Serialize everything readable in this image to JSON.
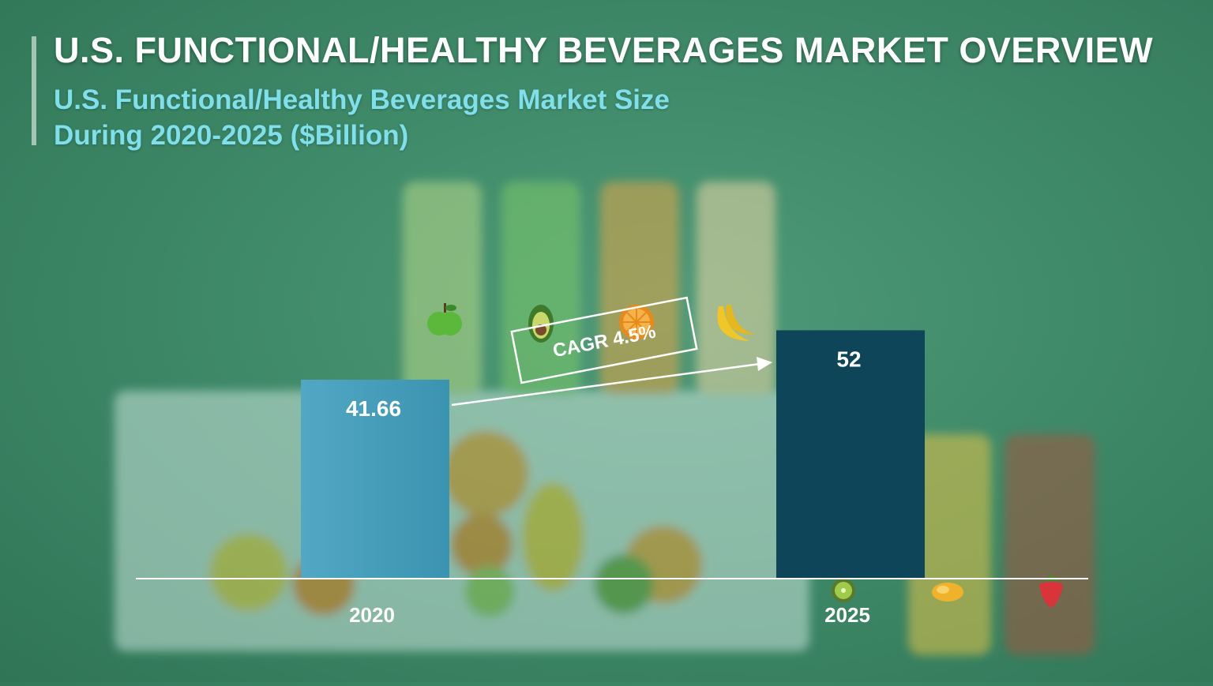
{
  "header": {
    "title": "U.S. FUNCTIONAL/HEALTHY BEVERAGES MARKET OVERVIEW",
    "subtitle_line1": "U.S. Functional/Healthy Beverages Market Size",
    "subtitle_line2": "During 2020-2025 ($Billion)"
  },
  "colors": {
    "background": "#3f8a69",
    "title": "#ffffff",
    "subtitle": "#7fe0ec",
    "bar_2020": "#3a93b0",
    "bar_2025": "#0f4558"
  },
  "annotation": {
    "cagr_label": "CAGR 4.5%"
  },
  "decor_icons": [
    "apple-icon",
    "avocado-icon",
    "orange-icon",
    "banana-icon",
    "kiwi-icon",
    "mango-icon",
    "strawberry-icon"
  ],
  "chart_data": {
    "type": "bar",
    "title": "U.S. Functional/Healthy Beverages Market Size During 2020-2025 ($Billion)",
    "categories": [
      "2020",
      "2025"
    ],
    "values": [
      41.66,
      52
    ],
    "value_labels": [
      "41.66",
      "52"
    ],
    "xlabel": "",
    "ylabel": "",
    "ylim": [
      0,
      60
    ],
    "grid": false,
    "legend": "none"
  }
}
